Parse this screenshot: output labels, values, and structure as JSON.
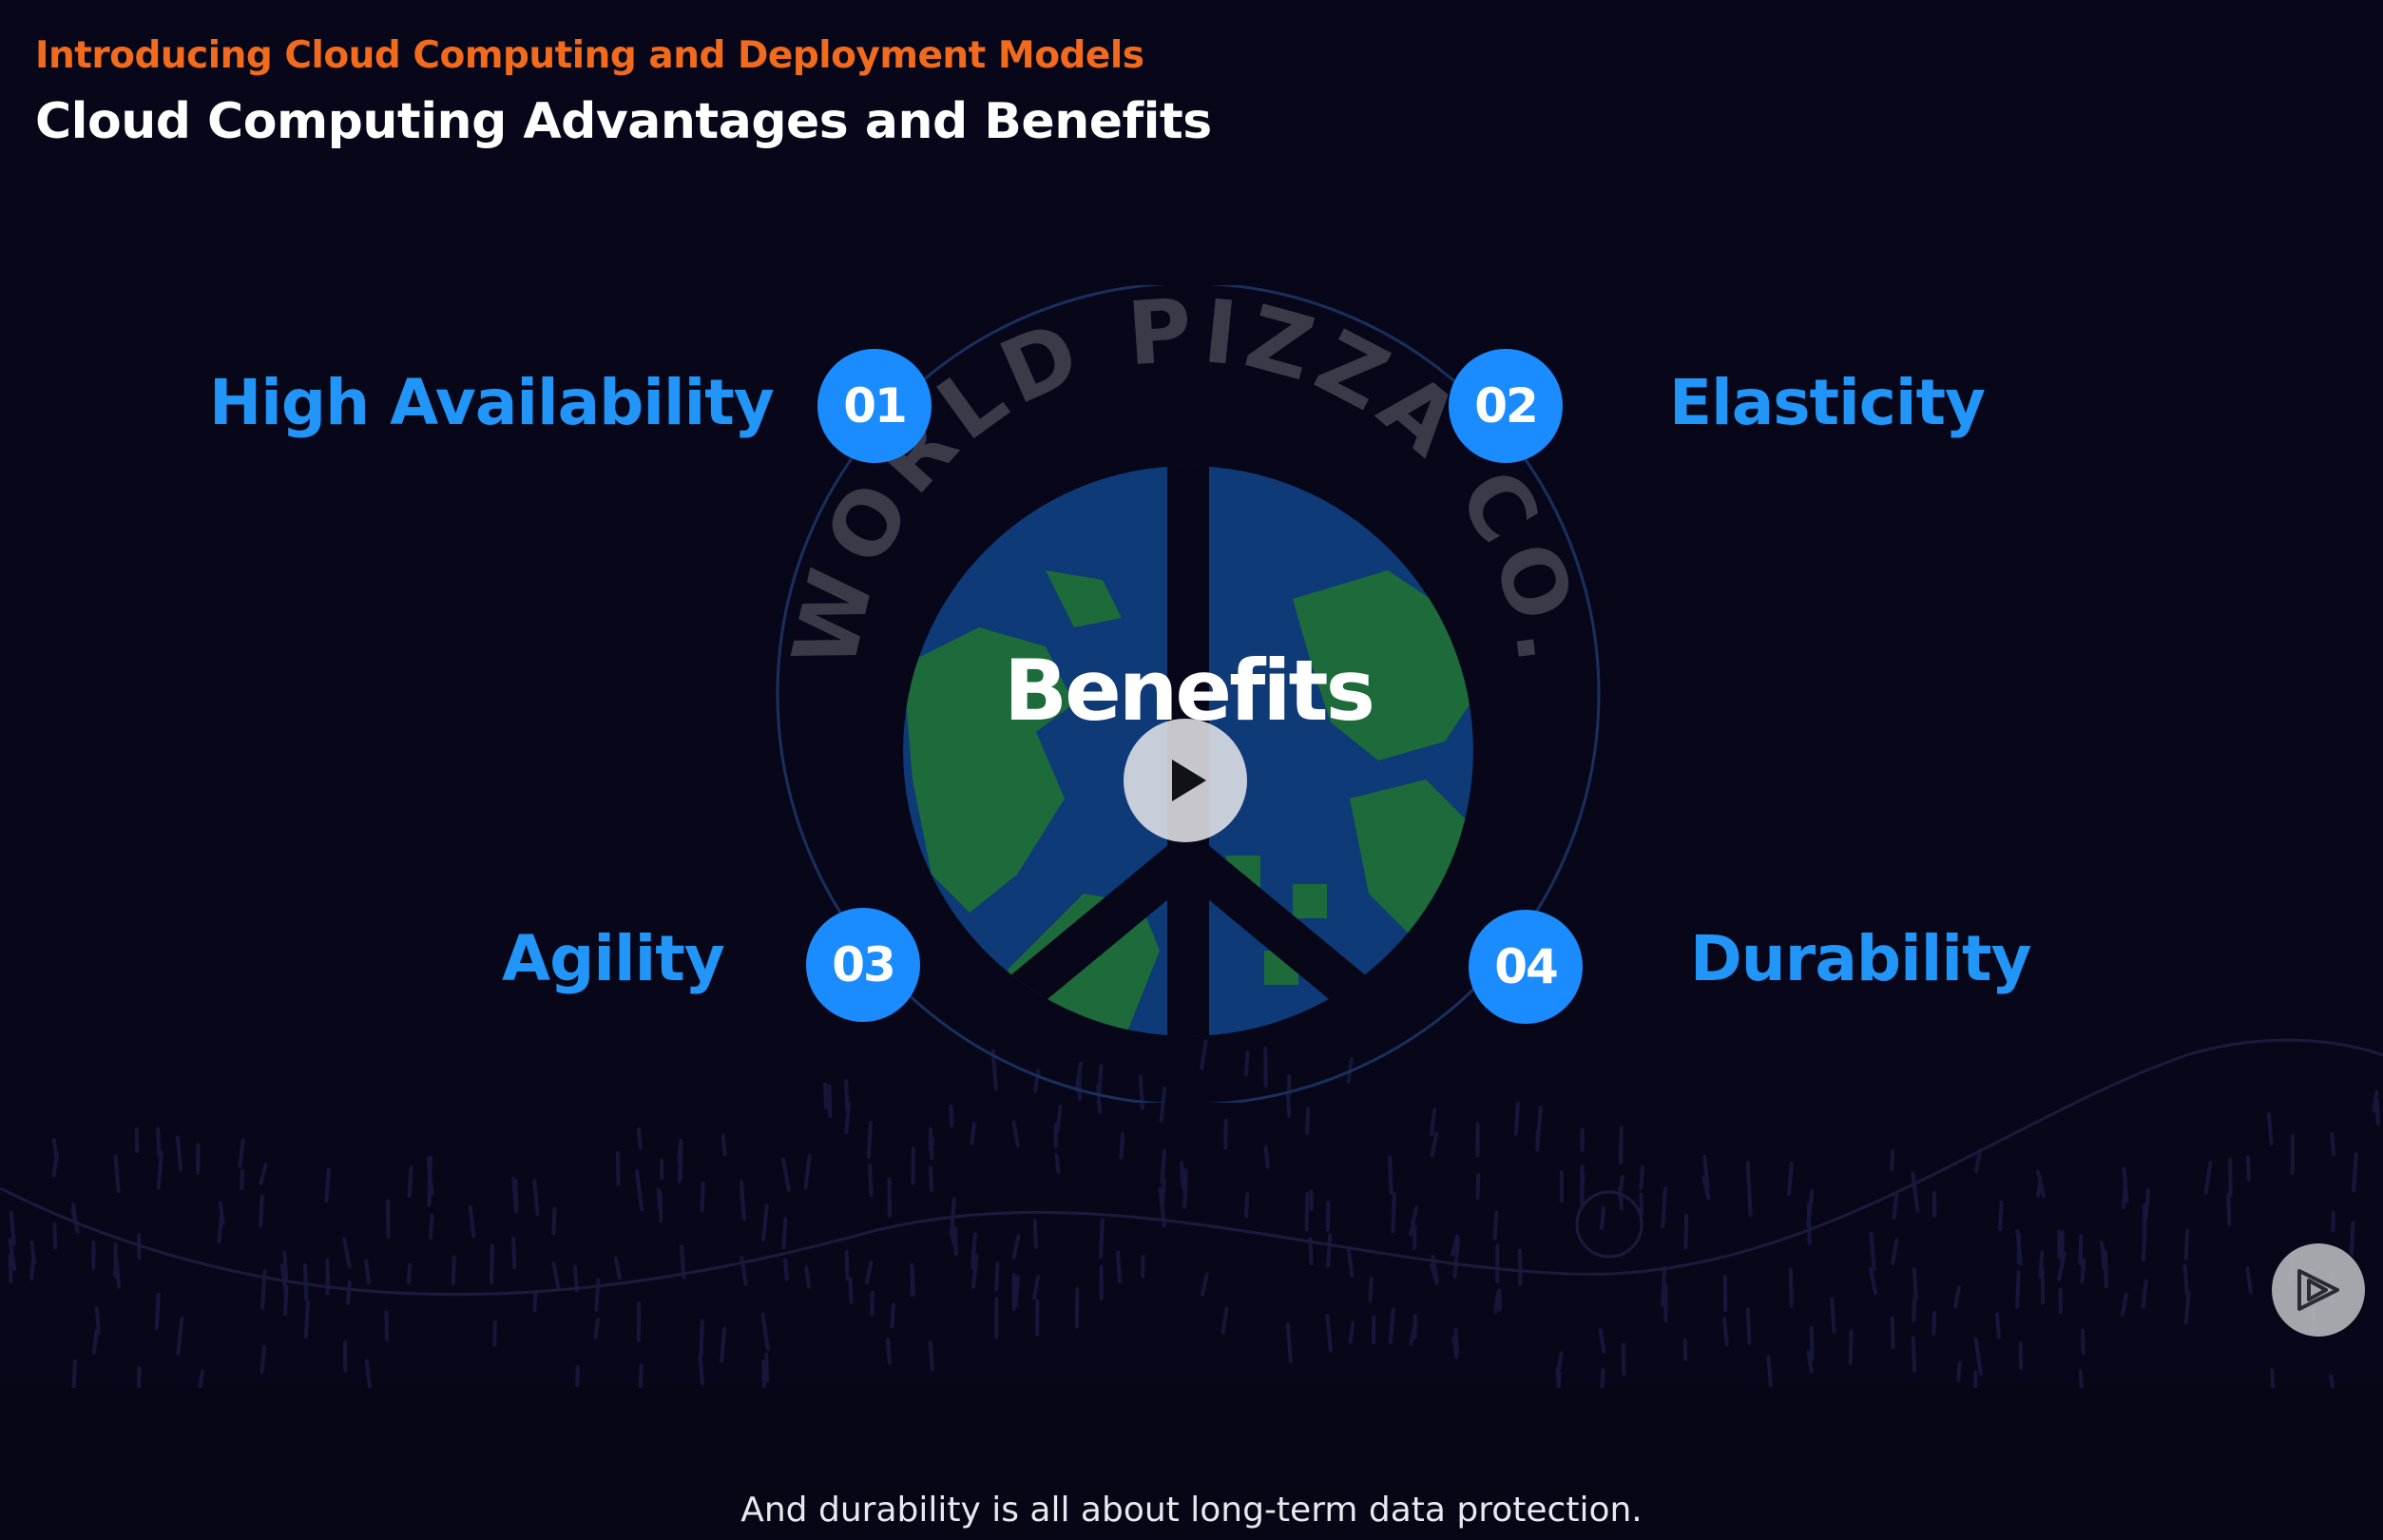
{
  "header": {
    "course_title": "Introducing Cloud Computing and Deployment Models",
    "clip_title": "Cloud Computing Advantages and Benefits"
  },
  "diagram": {
    "center_label": "Benefits",
    "logo_text": "WORLD PIZZA CO.",
    "items": [
      {
        "number": "01",
        "label": "High Availability"
      },
      {
        "number": "02",
        "label": "Elasticity"
      },
      {
        "number": "03",
        "label": "Agility"
      },
      {
        "number": "04",
        "label": "Durability"
      }
    ]
  },
  "player": {
    "play_icon": "play-icon",
    "brand_icon": "pluralsight-logo-icon"
  },
  "caption": {
    "text": "And durability is all about long-term data protection."
  },
  "colors": {
    "background": "#08071a",
    "accent_orange": "#f26b1d",
    "accent_blue": "#1a8cff",
    "globe_ocean": "#0e3a78",
    "globe_land": "#1d6b3a"
  }
}
